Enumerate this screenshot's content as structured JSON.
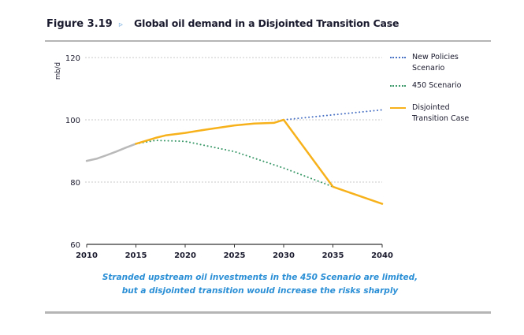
{
  "figure": {
    "number": "Figure 3.19",
    "arrow_icon": "▹",
    "title": "Global oil demand in a Disjointed Transition Case",
    "caption_line1": "Stranded upstream oil investments in the 450 Scenario are limited,",
    "caption_line2": "but a disjointed transition would increase the risks sharply"
  },
  "chart_data": {
    "type": "line",
    "title": "Global oil demand in a Disjointed Transition Case",
    "xlabel": "",
    "ylabel": "mb/d",
    "xlim": [
      2010,
      2040
    ],
    "ylim": [
      60,
      120
    ],
    "x_ticks": [
      2010,
      2015,
      2020,
      2025,
      2030,
      2035,
      2040
    ],
    "y_ticks": [
      60,
      80,
      100,
      120
    ],
    "grid": "horizontal-dotted",
    "legend_position": "right",
    "series": [
      {
        "name": "Historical",
        "style": "solid",
        "color": "#b9b9b9",
        "in_legend": false,
        "x": [
          2010,
          2011,
          2012,
          2013,
          2014,
          2015
        ],
        "values": [
          86.8,
          87.5,
          88.6,
          89.8,
          91.1,
          92.3
        ]
      },
      {
        "name": "New Policies Scenario",
        "style": "dotted",
        "color": "#4a72c4",
        "in_legend": true,
        "x": [
          2030,
          2035,
          2040
        ],
        "values": [
          100.0,
          101.6,
          103.2
        ]
      },
      {
        "name": "450 Scenario",
        "style": "dotted",
        "color": "#3c9a6a",
        "in_legend": true,
        "x": [
          2015,
          2017,
          2020,
          2025,
          2030,
          2035
        ],
        "values": [
          92.3,
          93.4,
          93.1,
          89.8,
          84.5,
          78.5
        ]
      },
      {
        "name": "Disjointed Transition Case",
        "style": "solid",
        "color": "#f7b21b",
        "in_legend": true,
        "x": [
          2015,
          2017,
          2018,
          2020,
          2022,
          2025,
          2027,
          2029,
          2030,
          2035,
          2040
        ],
        "values": [
          92.3,
          94.2,
          95.0,
          95.8,
          96.8,
          98.2,
          98.8,
          99.0,
          100.0,
          78.5,
          73.0
        ]
      }
    ]
  },
  "legend": [
    {
      "line1": "New Policies",
      "line2": "Scenario"
    },
    {
      "line1": "450 Scenario",
      "line2": ""
    },
    {
      "line1": "Disjointed",
      "line2": "Transition Case"
    }
  ]
}
